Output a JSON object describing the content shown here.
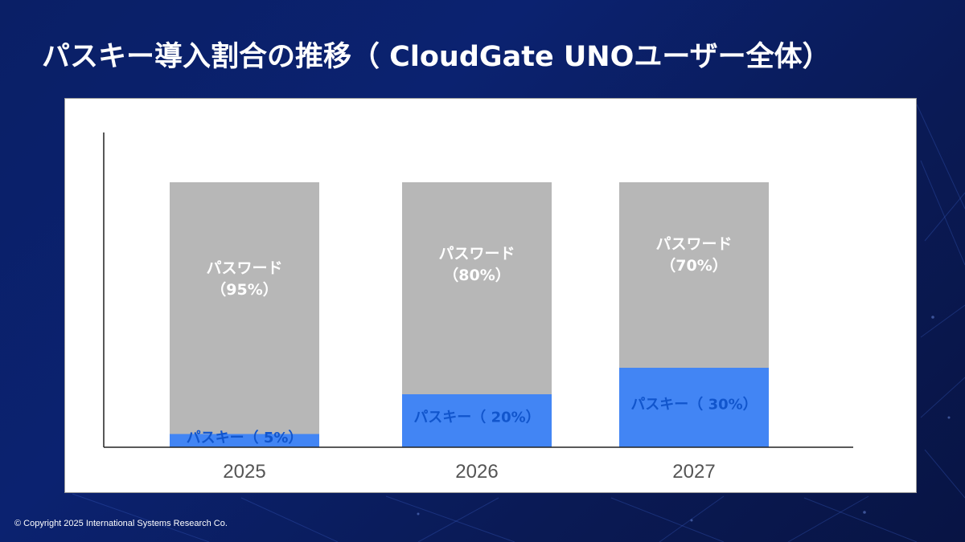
{
  "slide": {
    "title": "パスキー導入割合の推移（ CloudGate UNOユーザー全体）",
    "footer": "© Copyright 2025 International Systems Research Co."
  },
  "colors": {
    "passkey": "#4285f4",
    "password": "#b7b7b7",
    "passkey_label": "#1155cc",
    "password_label": "#ffffff",
    "tick_label": "#555555",
    "axis": "#222222"
  },
  "chart_data": {
    "type": "bar",
    "stacked": true,
    "categories": [
      "2025",
      "2026",
      "2027"
    ],
    "series": [
      {
        "key": "passkey",
        "values": [
          5,
          20,
          30
        ],
        "labels": [
          "パスキー（ 5%）",
          "パスキー（ 20%）",
          "パスキー（ 30%）"
        ]
      },
      {
        "key": "password",
        "values": [
          95,
          80,
          70
        ],
        "labels": [
          [
            "パスワード",
            "（95%）"
          ],
          [
            "パスワード",
            "（80%）"
          ],
          [
            "パスワード",
            "（70%）"
          ]
        ]
      }
    ],
    "ylim": [
      0,
      100
    ],
    "grid": false,
    "legend": "none"
  }
}
